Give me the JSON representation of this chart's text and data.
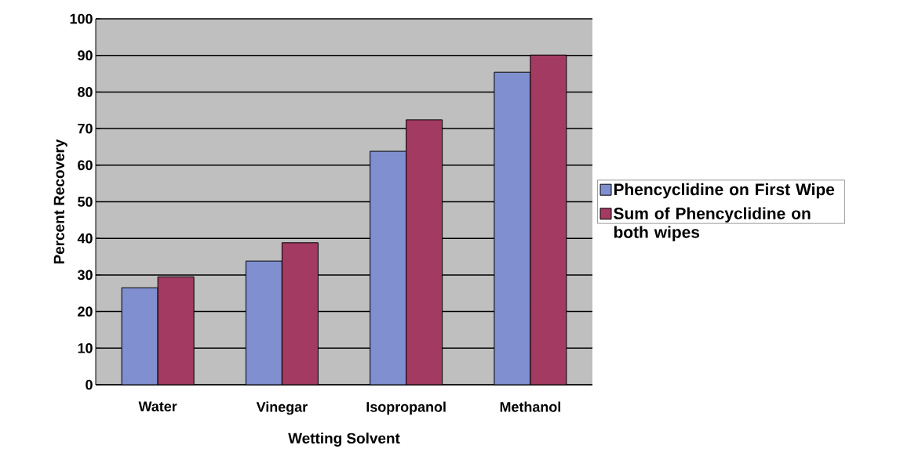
{
  "chart_data": {
    "type": "bar",
    "xlabel": "Wetting Solvent",
    "ylabel": "Percent Recovery",
    "categories": [
      "Water",
      "Vinegar",
      "Isopropanol",
      "Methanol"
    ],
    "series": [
      {
        "name": "Phencyclidine on First Wipe",
        "color": "#7f8fcf",
        "values": [
          26.5,
          33.8,
          63.8,
          85.4
        ]
      },
      {
        "name": "Sum of Phencyclidine on both wipes",
        "color": "#a23a62",
        "values": [
          29.5,
          38.8,
          72.4,
          90.1
        ]
      }
    ],
    "ylim": [
      0,
      100
    ],
    "yticks": [
      0,
      10,
      20,
      30,
      40,
      50,
      60,
      70,
      80,
      90,
      100
    ],
    "grid": "y",
    "legend": "right"
  }
}
